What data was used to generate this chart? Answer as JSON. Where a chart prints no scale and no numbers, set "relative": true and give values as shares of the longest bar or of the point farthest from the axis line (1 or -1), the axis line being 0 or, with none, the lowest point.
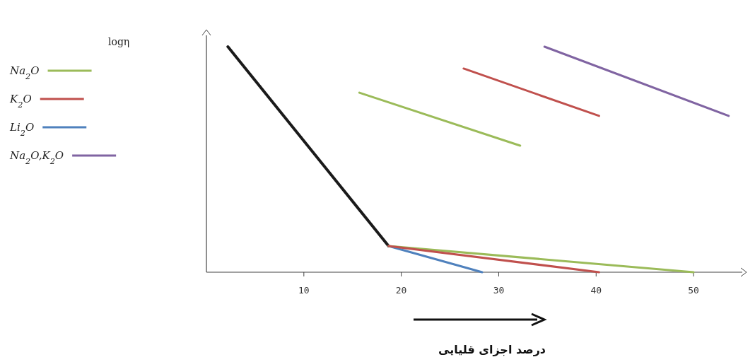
{
  "chart_data": {
    "type": "line",
    "relative": true,
    "annotations": [
      "logη"
    ],
    "xlabel": "درصد اجزای قلیایی",
    "xlim": [
      0,
      55
    ],
    "xticks": [
      10,
      20,
      30,
      40,
      50
    ],
    "legend": "left",
    "grid": false,
    "marker": "none",
    "line_style": "solid",
    "series": [
      {
        "color": "#1a1a1a",
        "x": [
          2.2,
          18.7
        ],
        "values": [
          1.0,
          0.116
        ]
      },
      {
        "name": "Na$_{2}$O",
        "color": "#9bbb59",
        "x": [
          15.7,
          32.2
        ],
        "values": [
          0.796,
          0.561
        ]
      },
      {
        "name": "K$_{2}$O",
        "color": "#c0504d",
        "x": [
          26.4,
          40.3
        ],
        "values": [
          0.903,
          0.693
        ]
      },
      {
        "name": "Li$_{2}$O",
        "color": "#4f81bd",
        "x": [
          18.7,
          28.3
        ],
        "values": [
          0.116,
          0
        ]
      },
      {
        "name": "Na$_{2}$O,K$_{2}$O",
        "color": "#8064a2",
        "x": [
          34.7,
          53.6
        ],
        "values": [
          1.0,
          0.693
        ]
      },
      {
        "color": "#9bbb59",
        "x": [
          18.7,
          50
        ],
        "values": [
          0.116,
          0
        ]
      },
      {
        "color": "#c0504d",
        "x": [
          18.7,
          40.3
        ],
        "values": [
          0.116,
          0
        ]
      }
    ]
  }
}
